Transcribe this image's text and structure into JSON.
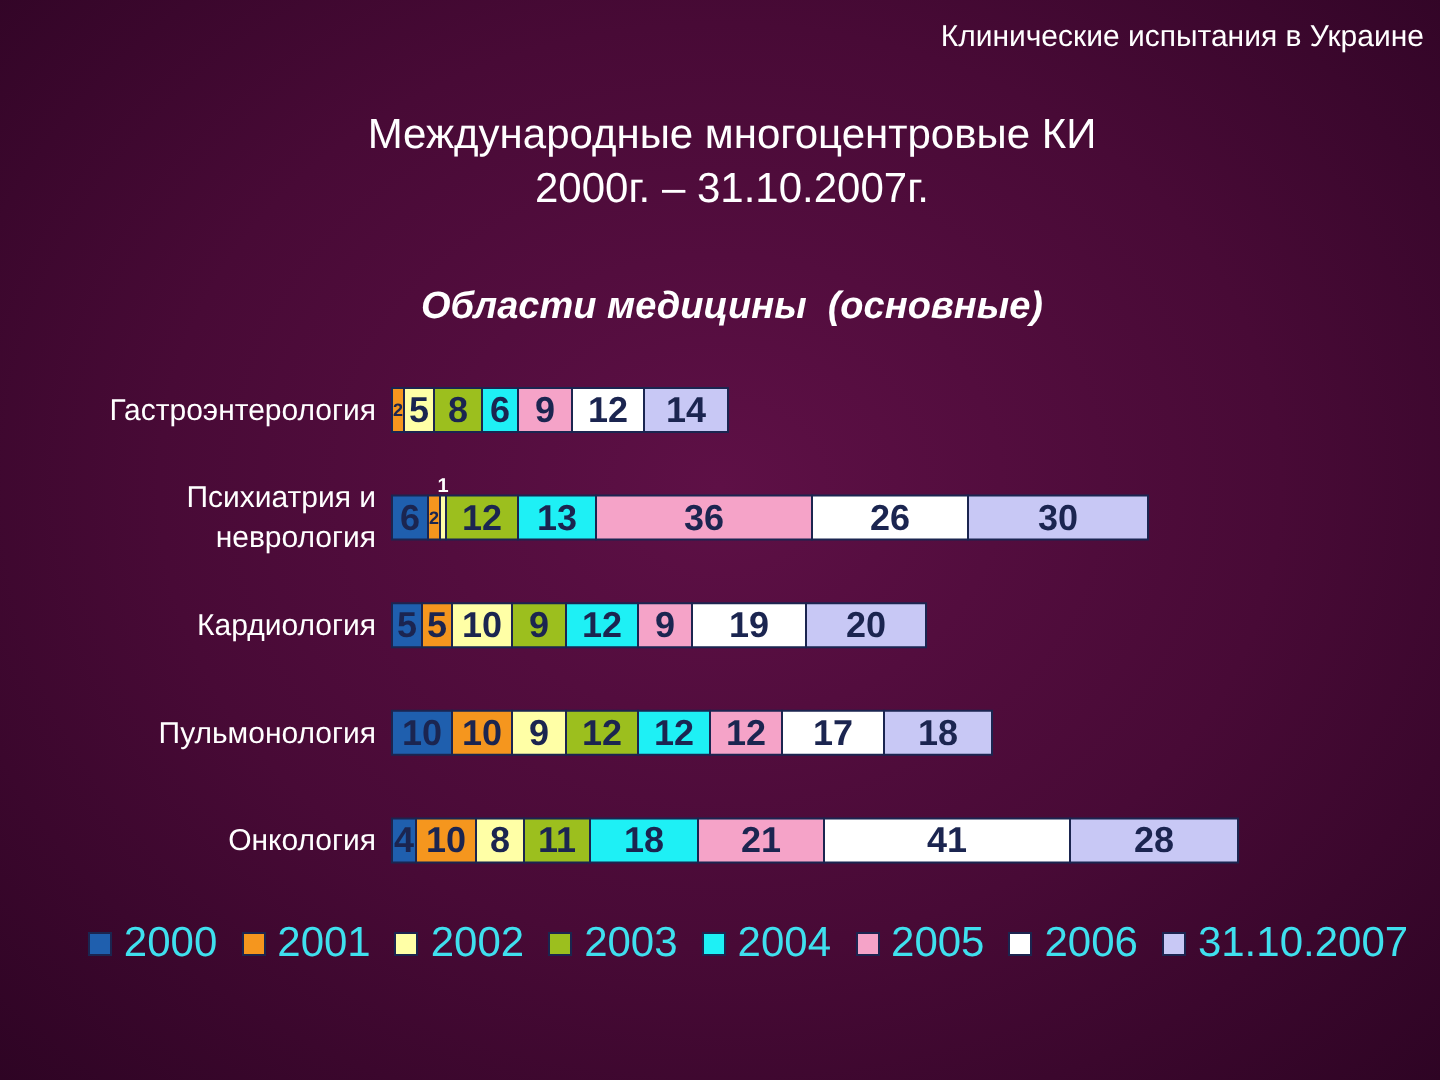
{
  "chart_data": {
    "type": "bar",
    "orientation": "horizontal",
    "stacked": true,
    "title": "Международные многоцентровые КИ\n2000г. – 31.10.2007г.",
    "subtitle": "Области медицины  (основные)",
    "annotations": [
      "Клинические испытания в Украине"
    ],
    "categories": [
      "Гастроэнтерология",
      "Психиатрия и неврология",
      "Кардиология",
      "Пульмонология",
      "Онкология"
    ],
    "series": [
      {
        "name": "2000",
        "color": "#1f5fae",
        "values": [
          null,
          6,
          5,
          10,
          4
        ]
      },
      {
        "name": "2001",
        "color": "#f5961e",
        "values": [
          2,
          2,
          5,
          10,
          10
        ]
      },
      {
        "name": "2002",
        "color": "#ffffa6",
        "values": [
          5,
          1,
          10,
          9,
          8
        ]
      },
      {
        "name": "2003",
        "color": "#9cbf1e",
        "values": [
          8,
          12,
          9,
          12,
          11
        ]
      },
      {
        "name": "2004",
        "color": "#1ef0f5",
        "values": [
          6,
          13,
          12,
          12,
          18
        ]
      },
      {
        "name": "2005",
        "color": "#f5a3c8",
        "values": [
          9,
          36,
          9,
          12,
          21
        ]
      },
      {
        "name": "2006",
        "color": "#ffffff",
        "values": [
          12,
          26,
          19,
          17,
          41
        ]
      },
      {
        "name": "31.10.2007",
        "color": "#c8c8f5",
        "values": [
          14,
          30,
          20,
          18,
          28
        ]
      }
    ],
    "data_labels": true,
    "legend": "bottom",
    "tick_labels": "y"
  }
}
